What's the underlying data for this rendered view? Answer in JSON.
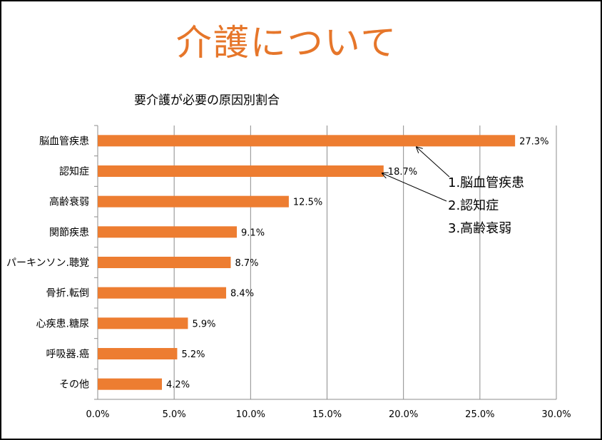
{
  "slide": {
    "title": "介護について",
    "title_color": "#e6762a"
  },
  "callouts": [
    "1.脳血管疾患",
    "2.認知症",
    "3.高齢衰弱"
  ],
  "chart_data": {
    "type": "bar",
    "orientation": "horizontal",
    "title": "要介護が必要の原因別割合",
    "categories": [
      "脳血管疾患",
      "認知症",
      "高齢衰弱",
      "関節疾患",
      "パーキンソン.聴覚",
      "骨折.転倒",
      "心疾患.糖尿",
      "呼吸器.癌",
      "その他"
    ],
    "values": [
      27.3,
      18.7,
      12.5,
      9.1,
      8.7,
      8.4,
      5.9,
      5.2,
      4.2
    ],
    "value_labels": [
      "27.3%",
      "18.7%",
      "12.5%",
      "9.1%",
      "8.7%",
      "8.4%",
      "5.9%",
      "5.2%",
      "4.2%"
    ],
    "xlim": [
      0,
      30
    ],
    "x_ticks": [
      "0.0%",
      "5.0%",
      "10.0%",
      "15.0%",
      "20.0%",
      "25.0%",
      "30.0%"
    ],
    "grid": true,
    "bar_color": "#ed7d31"
  }
}
